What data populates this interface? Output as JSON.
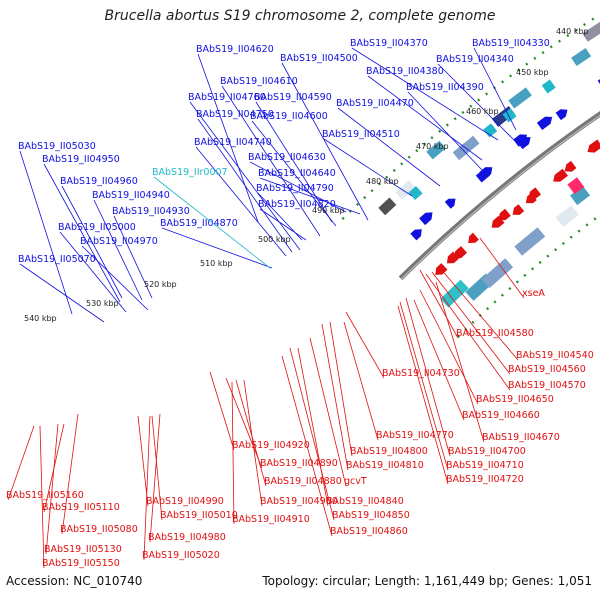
{
  "title": "Brucella abortus S19 chromosome 2, complete genome",
  "footer": {
    "accession": "Accession: NC_010740",
    "summary": "Topology: circular; Length: 1,161,449 bp; Genes: 1,051"
  },
  "ticks": [
    "440 kbp",
    "450 kbp",
    "460 kbp",
    "470 kbp",
    "480 kbp",
    "490 kbp",
    "500 kbp",
    "510 kbp",
    "520 kbp",
    "530 kbp",
    "540 kbp"
  ],
  "colors": {
    "forward": "#1010e0",
    "reverse": "#e01010",
    "rna": "#20b8c8",
    "backbone": "#777777",
    "tick_dots": "#2a8a2a"
  },
  "forward_labels": [
    "BAbS19_II04620",
    "BAbS19_II04500",
    "BAbS19_II04370",
    "BAbS19_II04330",
    "BAbS19_II04340",
    "BAbS19_II04380",
    "BAbS19_II04610",
    "BAbS19_II04390",
    "BAbS19_II04760",
    "BAbS19_II04590",
    "BAbS19_II04470",
    "BAbS19_II04750",
    "BAbS19_II04600",
    "BAbS19_II04510",
    "BAbS19_II04740",
    "BAbS19_II05030",
    "BAbS19_II04630",
    "BAbS19_II04950",
    "BAbS19_II04640",
    "BAbS19_II04960",
    "BAbS19_II04790",
    "BAbS19_II04940",
    "BAbS19_II04820",
    "BAbS19_II04930",
    "BAbS19_II04870",
    "BAbS19_II05000",
    "BAbS19_II04970",
    "BAbS19_II05070"
  ],
  "rna_labels": [
    "BAbS19_IIr0007"
  ],
  "reverse_labels": [
    "xseA",
    "BAbS19_II04580",
    "BAbS19_II04540",
    "BAbS19_II04560",
    "BAbS19_II04570",
    "BAbS19_II04730",
    "BAbS19_II04650",
    "BAbS19_II04660",
    "BAbS19_II04670",
    "BAbS19_II04770",
    "BAbS19_II04700",
    "BAbS19_II04800",
    "BAbS19_II04710",
    "BAbS19_II04810",
    "BAbS19_II04720",
    "BAbS19_II04920",
    "BAbS19_II04890",
    "BAbS19_II04880",
    "gcvT",
    "BAbS19_II05160",
    "BAbS19_II05110",
    "BAbS19_II04990",
    "BAbS19_II05010",
    "BAbS19_II04900",
    "BAbS19_II04840",
    "BAbS19_II05080",
    "BAbS19_II04910",
    "BAbS19_II04850",
    "BAbS19_II04980",
    "BAbS19_II04860",
    "BAbS19_II05130",
    "BAbS19_II05020",
    "BAbS19_II05150"
  ]
}
